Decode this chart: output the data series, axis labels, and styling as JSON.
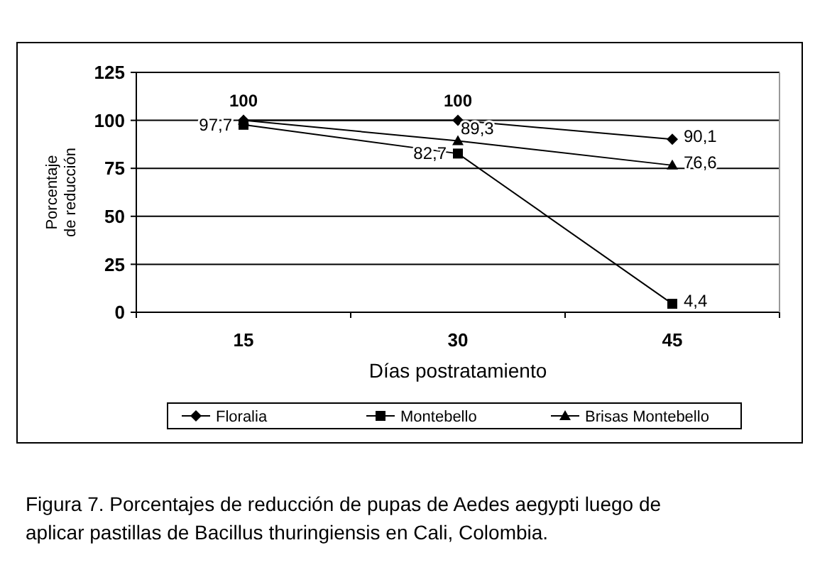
{
  "chart_data": {
    "type": "line",
    "xlabel": "Días postratamiento",
    "ylabel": "Porcentaje de reducción",
    "categories": [
      "15",
      "30",
      "45"
    ],
    "ylim": [
      0,
      125
    ],
    "yticks": [
      0,
      25,
      50,
      75,
      100,
      125
    ],
    "grid": "y",
    "legend": "bottom",
    "series": [
      {
        "name": "Floralia",
        "color": "#000000",
        "marker": "diamond",
        "values": [
          100,
          100,
          90.1
        ],
        "value_labels": [
          "100",
          "100",
          "90,1"
        ]
      },
      {
        "name": "Montebello",
        "color": "#000000",
        "marker": "square",
        "values": [
          97.7,
          82.7,
          4.4
        ],
        "value_labels": [
          "97,7",
          "82,7",
          "4,4"
        ]
      },
      {
        "name": "Brisas Montebello",
        "color": "#000000",
        "marker": "triangle",
        "values": [
          100,
          89.3,
          76.6
        ],
        "value_labels": [
          null,
          "89,3",
          "76,6"
        ]
      }
    ],
    "annotations": [
      "Figura 7. Porcentajes de reducción de pupas de Aedes aegypti luego de aplicar pastillas de Bacillus thuringiensis en Cali, Colombia."
    ]
  }
}
